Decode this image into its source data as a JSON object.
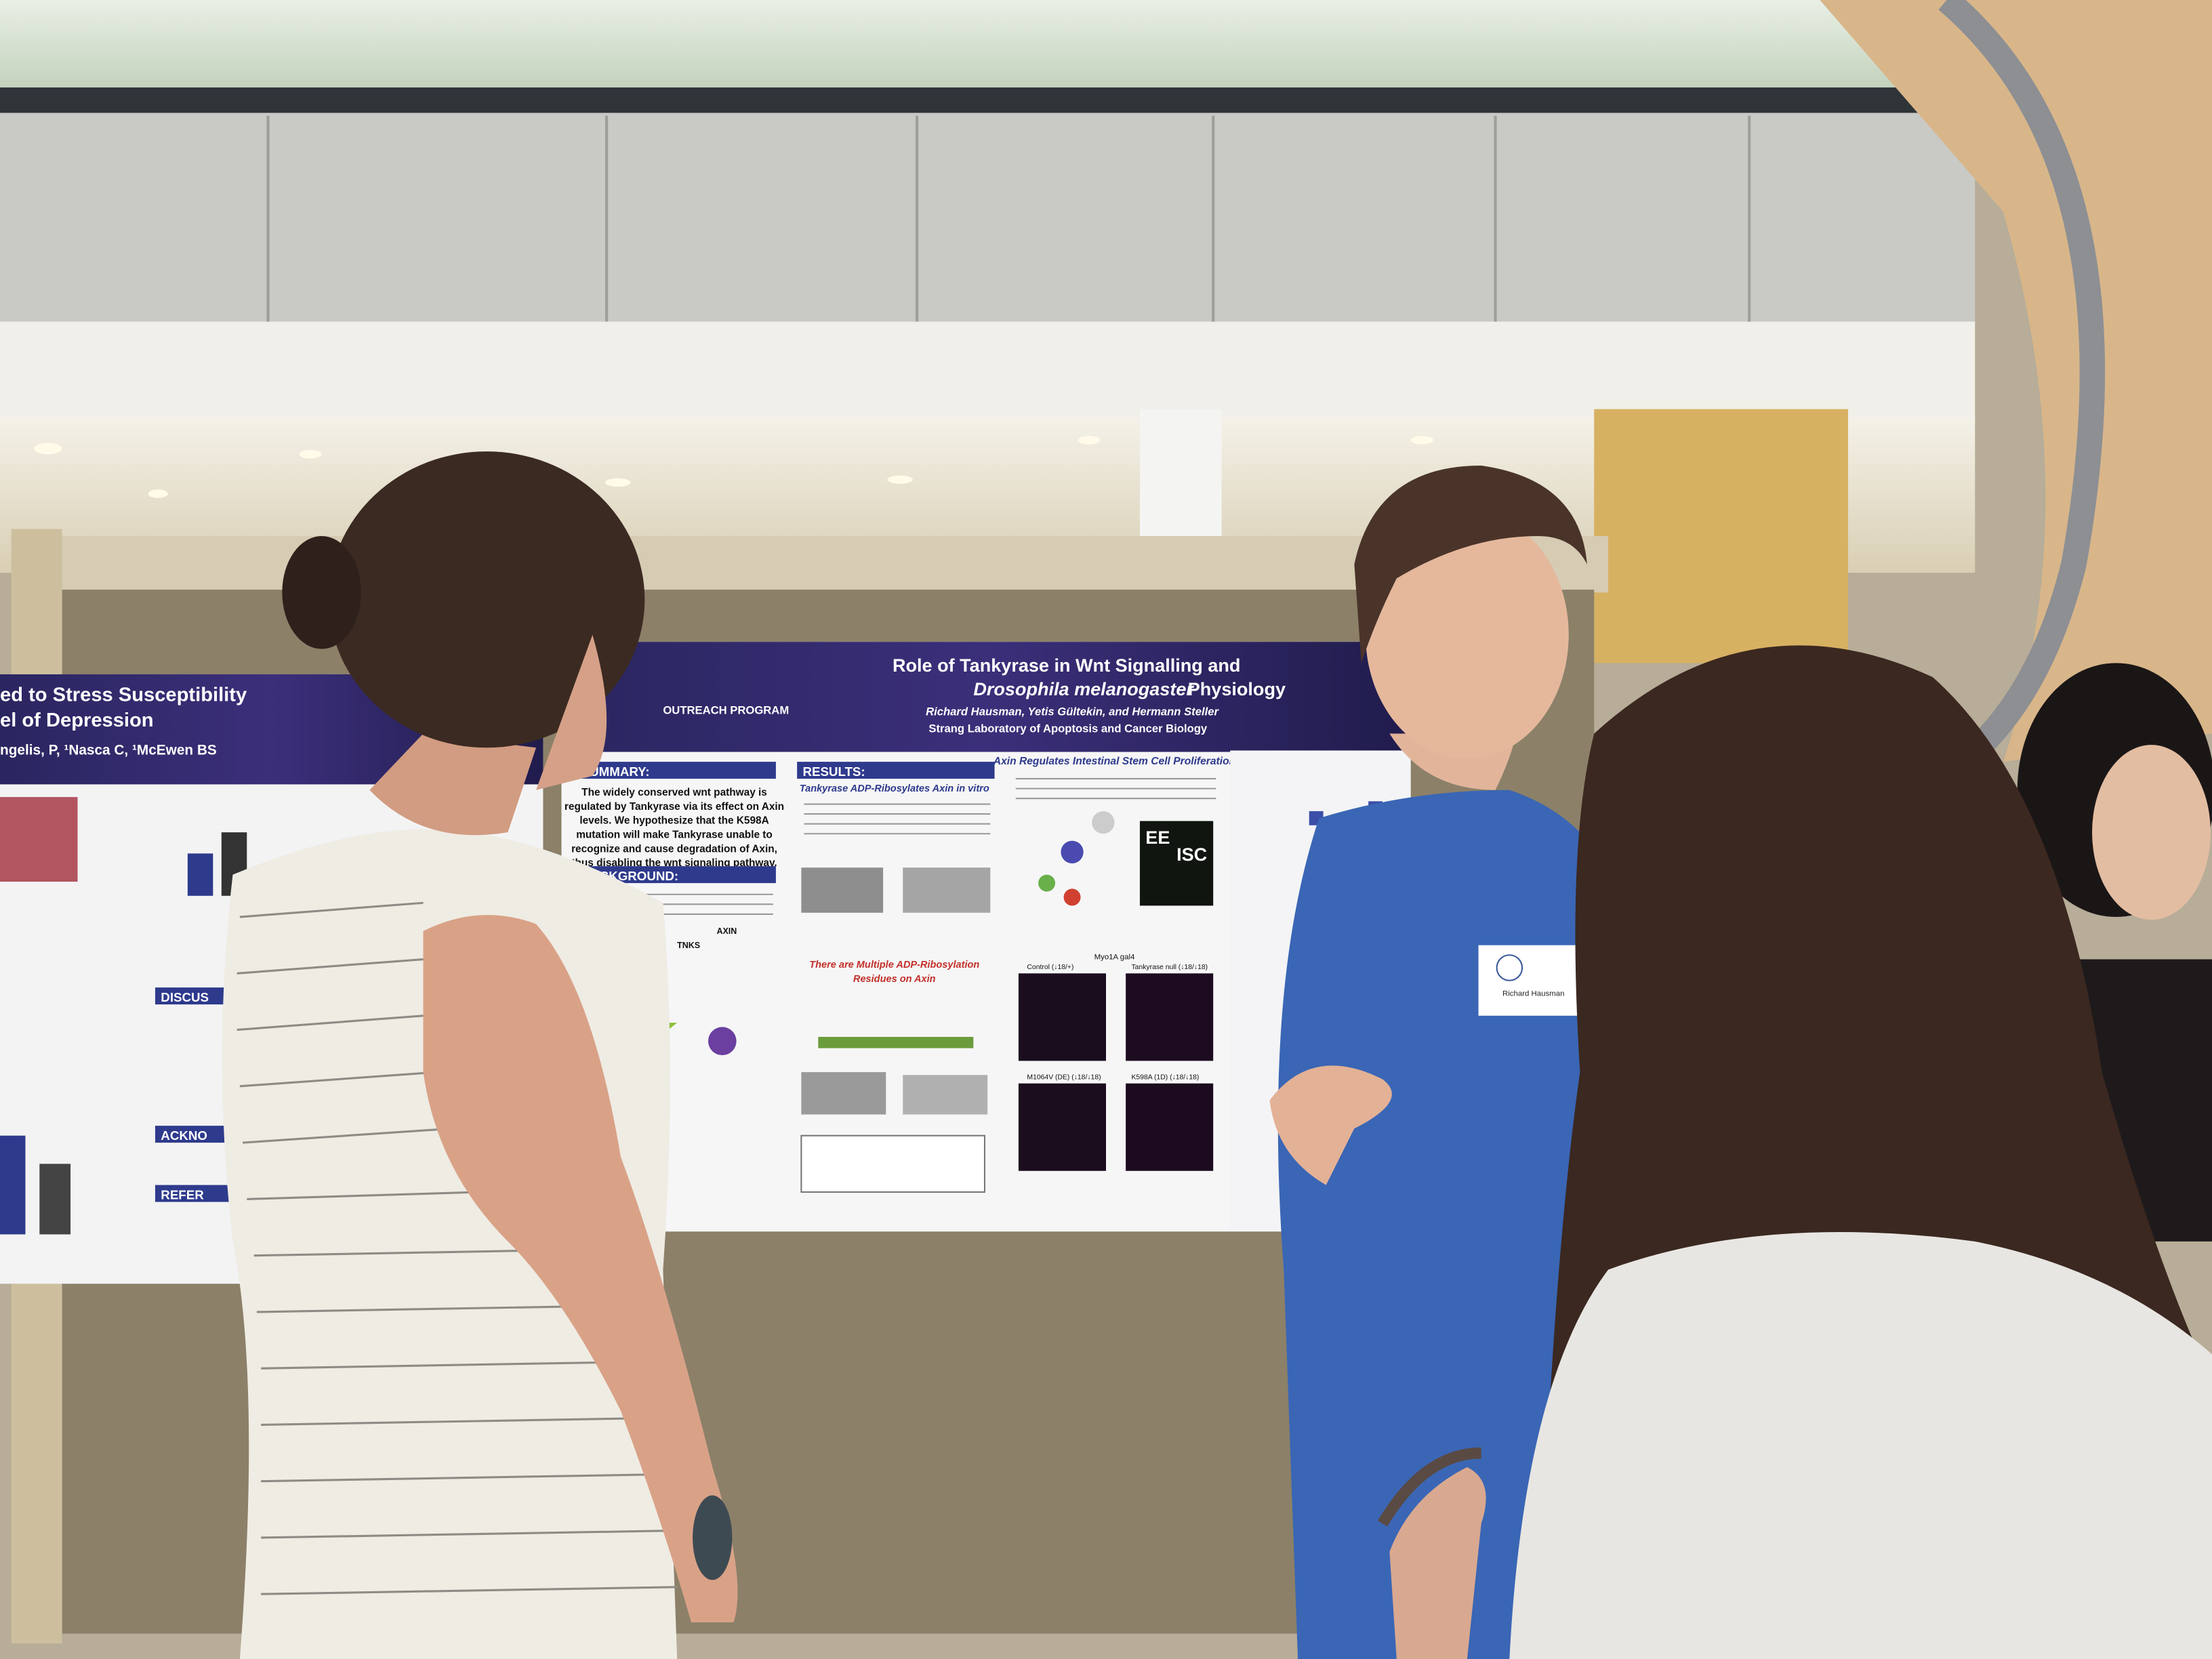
{
  "main_poster": {
    "program": "OUTREACH PROGRAM",
    "title_line1": "Role of Tankyrase in Wnt Signalling and",
    "title_line2_italic": "Drosophila melanogaster",
    "title_line2_rest": "Physiology",
    "authors": "Richard Hausman, Yetis Gültekin, and Hermann Steller",
    "lab": "Strang Laboratory of Apoptosis and Cancer Biology",
    "summary_heading": "SUMMARY:",
    "summary": [
      "The widely conserved wnt pathway is",
      "regulated by Tankyrase via its effect on Axin",
      "levels. We hypothesize that the K598A",
      "mutation will make Tankyrase unable to",
      "recognize and cause degradation of Axin,",
      "thus disabling the wnt signaling pathway."
    ],
    "background_heading": "BACKGROUND:",
    "diagram_labels": [
      "AXIN",
      "TNKS"
    ],
    "results_heading": "RESULTS:",
    "results_sub": [
      "Tankyrase ADP-Ribosylates Axin in vitro",
      "There are Multiple ADP-Ribosylation",
      "Residues on Axin",
      "Axin Regulates Intestinal Stem Cell Proliferation"
    ],
    "micrograph_labels": [
      "EE",
      "ISC"
    ],
    "panel_header": "Myo1A gal4",
    "panel_labels": [
      "Control (↓18/+)",
      "Tankyrase null (↓18/↓18)",
      "M1064V (DE) (↓18/↓18)",
      "K598A (1D) (↓18/↓18)"
    ]
  },
  "left_poster": {
    "title_line1": "ed to Stress Susceptibility",
    "title_line2": "el of Depression",
    "authors": "ngelis, P, ¹Nasca C, ¹McEwen BS",
    "sections": [
      "DISCUS",
      "ACKNO",
      "REFER"
    ]
  },
  "badge": {
    "name": "Richard Hausman"
  }
}
